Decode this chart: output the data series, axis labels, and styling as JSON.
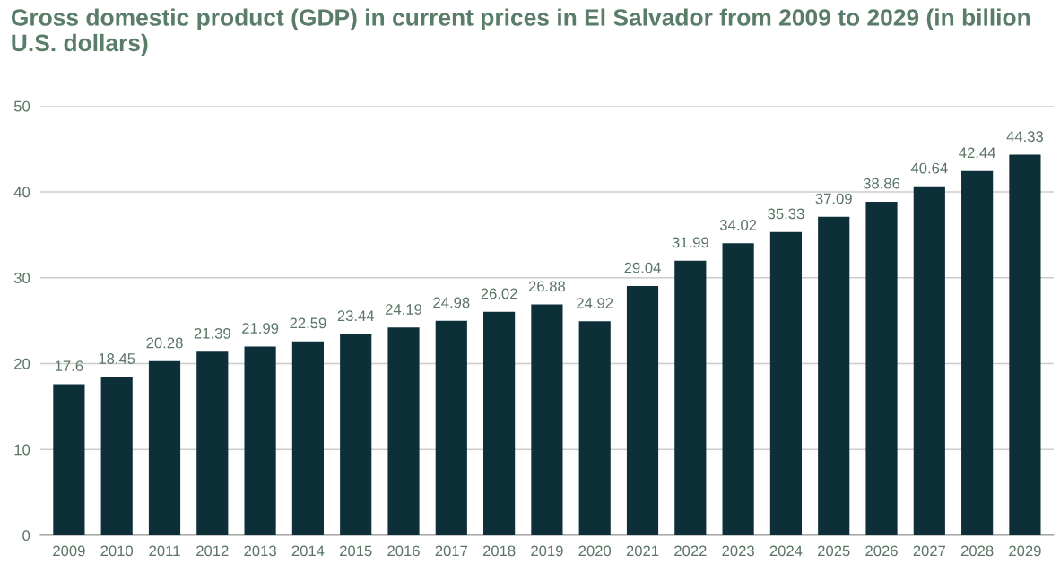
{
  "chart_data": {
    "type": "bar",
    "title": "Gross domestic product (GDP) in current prices in El Salvador from 2009 to 2029 (in billion U.S. dollars)",
    "categories": [
      "2009",
      "2010",
      "2011",
      "2012",
      "2013",
      "2014",
      "2015",
      "2016",
      "2017",
      "2018",
      "2019",
      "2020",
      "2021",
      "2022",
      "2023",
      "2024",
      "2025",
      "2026",
      "2027",
      "2028",
      "2029"
    ],
    "values": [
      17.6,
      18.45,
      20.28,
      21.39,
      21.99,
      22.59,
      23.44,
      24.19,
      24.98,
      26.02,
      26.88,
      24.92,
      29.04,
      31.99,
      34.02,
      35.33,
      37.09,
      38.86,
      40.64,
      42.44,
      44.33
    ],
    "value_labels": [
      "17.6",
      "18.45",
      "20.28",
      "21.39",
      "21.99",
      "22.59",
      "23.44",
      "24.19",
      "24.98",
      "26.02",
      "26.88",
      "24.92",
      "29.04",
      "31.99",
      "34.02",
      "35.33",
      "37.09",
      "38.86",
      "40.64",
      "42.44",
      "44.33"
    ],
    "color": "#0d3038",
    "ylim": [
      0,
      50
    ],
    "yticks": [
      0,
      10,
      20,
      30,
      40,
      50
    ],
    "grid": "y",
    "legend": false
  }
}
